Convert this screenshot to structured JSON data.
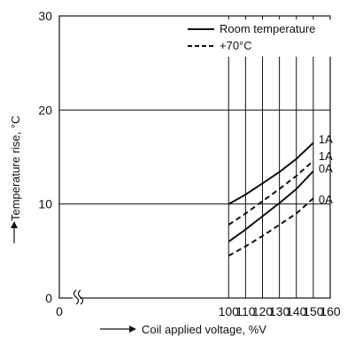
{
  "chart_data": {
    "type": "line",
    "xlabel": "Coil applied voltage, %V",
    "ylabel": "Temperature rise, °C",
    "xlim": [
      0,
      160
    ],
    "ylim": [
      0,
      30
    ],
    "x_axis_break": true,
    "x_ticks": [
      0,
      100,
      110,
      120,
      130,
      140,
      150,
      160
    ],
    "y_ticks": [
      0,
      10,
      20,
      30
    ],
    "grid": true,
    "legend_position": "top-right",
    "legend": [
      {
        "label": "Room temperature",
        "style": "solid"
      },
      {
        "label": "+70°C",
        "style": "dashed"
      }
    ],
    "series": [
      {
        "name": "1A",
        "condition": "Room temperature",
        "style": "solid",
        "x": [
          100,
          110,
          120,
          130,
          140,
          150
        ],
        "y": [
          10.0,
          11.0,
          12.2,
          13.4,
          14.8,
          16.5
        ]
      },
      {
        "name": "0A",
        "condition": "Room temperature",
        "style": "solid",
        "x": [
          100,
          110,
          120,
          130,
          140,
          150
        ],
        "y": [
          6.0,
          7.3,
          8.7,
          10.1,
          11.6,
          13.5
        ]
      },
      {
        "name": "1A",
        "condition": "+70°C",
        "style": "dashed",
        "x": [
          100,
          110,
          120,
          130,
          140,
          150
        ],
        "y": [
          7.8,
          9.0,
          10.3,
          11.6,
          13.0,
          14.6
        ]
      },
      {
        "name": "0A",
        "condition": "+70°C",
        "style": "dashed",
        "x": [
          100,
          110,
          120,
          130,
          140,
          150
        ],
        "y": [
          4.5,
          5.5,
          6.6,
          7.8,
          9.0,
          10.6
        ]
      }
    ]
  }
}
